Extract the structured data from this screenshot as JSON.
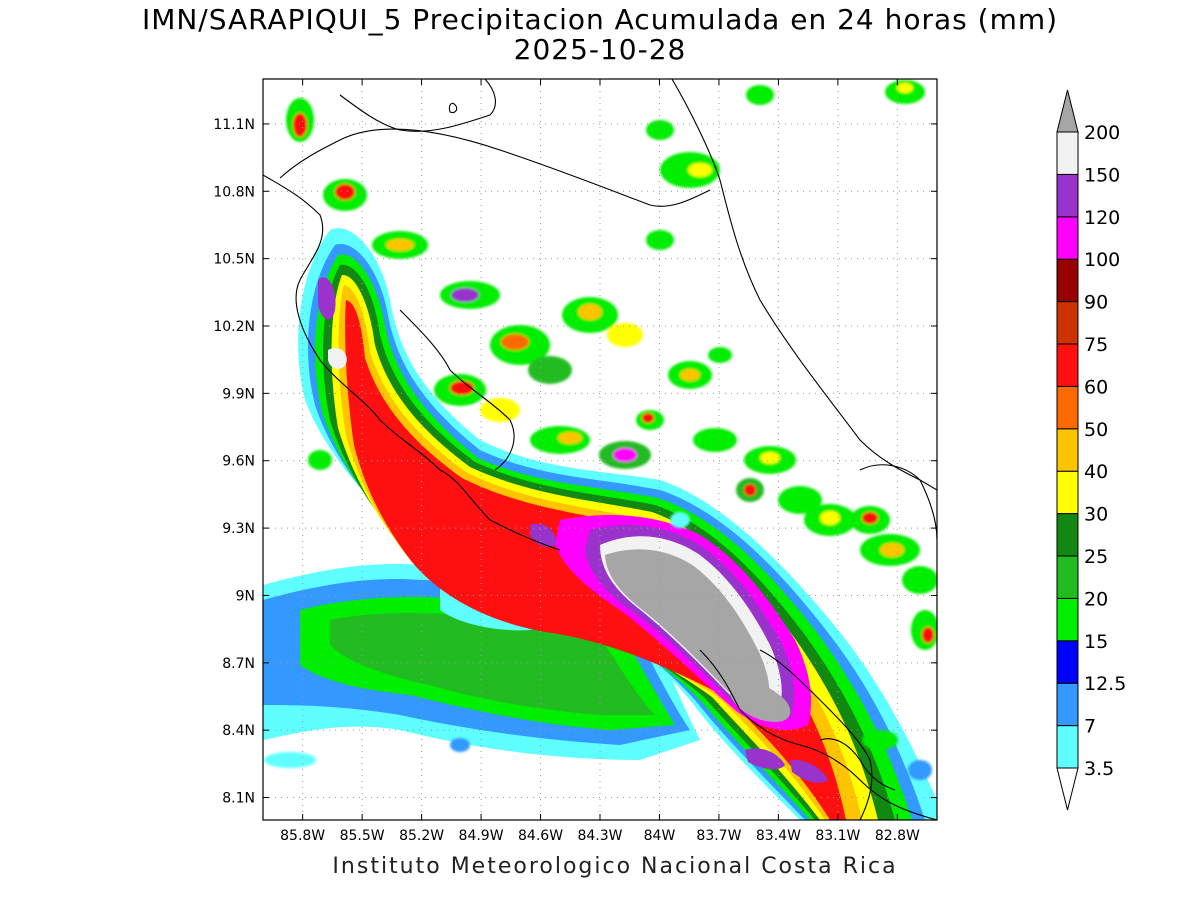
{
  "title": {
    "line1": "IMN/SARAPIQUI_5 Precipitacion Acumulada en 24 horas (mm)",
    "line2": "2025-10-28"
  },
  "footer": "Instituto Meteorologico Nacional Costa Rica",
  "map": {
    "lon_range": [
      -86.0,
      -82.6
    ],
    "lat_range": [
      8.0,
      11.3
    ],
    "grid": true,
    "lon_ticks": [
      {
        "value": -85.8,
        "label": "85.8W"
      },
      {
        "value": -85.5,
        "label": "85.5W"
      },
      {
        "value": -85.2,
        "label": "85.2W"
      },
      {
        "value": -84.9,
        "label": "84.9W"
      },
      {
        "value": -84.6,
        "label": "84.6W"
      },
      {
        "value": -84.3,
        "label": "84.3W"
      },
      {
        "value": -84.0,
        "label": "84W"
      },
      {
        "value": -83.7,
        "label": "83.7W"
      },
      {
        "value": -83.4,
        "label": "83.4W"
      },
      {
        "value": -83.1,
        "label": "83.1W"
      },
      {
        "value": -82.8,
        "label": "82.8W"
      }
    ],
    "lat_ticks": [
      {
        "value": 11.1,
        "label": "11.1N"
      },
      {
        "value": 10.8,
        "label": "10.8N"
      },
      {
        "value": 10.5,
        "label": "10.5N"
      },
      {
        "value": 10.2,
        "label": "10.2N"
      },
      {
        "value": 9.9,
        "label": "9.9N"
      },
      {
        "value": 9.6,
        "label": "9.6N"
      },
      {
        "value": 9.3,
        "label": "9.3N"
      },
      {
        "value": 9.0,
        "label": "9N"
      },
      {
        "value": 8.7,
        "label": "8.7N"
      },
      {
        "value": 8.4,
        "label": "8.4N"
      },
      {
        "value": 8.1,
        "label": "8.1N"
      }
    ]
  },
  "colorbar": {
    "labels": [
      "3.5",
      "7",
      "12.5",
      "15",
      "20",
      "25",
      "30",
      "40",
      "50",
      "60",
      "75",
      "90",
      "100",
      "120",
      "150",
      "200"
    ],
    "colors": [
      "#5fffff",
      "#3399ff",
      "#0000ff",
      "#00ee00",
      "#22bb22",
      "#118811",
      "#ffff00",
      "#ffc400",
      "#ff6a00",
      "#ff1010",
      "#cc3300",
      "#990000",
      "#ff00ff",
      "#9933cc",
      "#f2f2f2",
      "#a6a6a6"
    ],
    "under_color": "#ffffff",
    "over_color": "#a6a6a6"
  }
}
